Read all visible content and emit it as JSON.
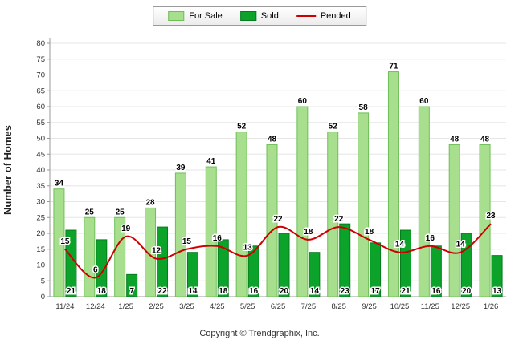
{
  "legend": {
    "for_sale_label": "For Sale",
    "sold_label": "Sold",
    "pended_label": "Pended"
  },
  "footer": "Copyright © Trendgraphix, Inc.",
  "colors": {
    "for_sale": "#A8DF8E",
    "for_sale_border": "#6FBF58",
    "sold": "#0CA32B",
    "sold_border": "#077A1F",
    "pended": "#CC0000",
    "grid": "#e6e6e6",
    "axis": "#999999",
    "tick_text": "#333333",
    "label_text": "#000000"
  },
  "chart_data": {
    "type": "bar",
    "subtype": "grouped-bars-with-line-overlay",
    "categories": [
      "11/24",
      "12/24",
      "1/25",
      "2/25",
      "3/25",
      "4/25",
      "5/25",
      "6/25",
      "7/25",
      "8/25",
      "9/25",
      "10/25",
      "11/25",
      "12/25",
      "1/26"
    ],
    "series": [
      {
        "name": "For Sale",
        "type": "bar",
        "values": [
          34,
          25,
          25,
          28,
          39,
          41,
          52,
          48,
          60,
          52,
          58,
          71,
          60,
          48,
          48
        ]
      },
      {
        "name": "Sold",
        "type": "bar",
        "values": [
          21,
          18,
          7,
          22,
          14,
          18,
          16,
          20,
          14,
          23,
          17,
          21,
          16,
          20,
          13
        ]
      },
      {
        "name": "Pended",
        "type": "line",
        "values": [
          15,
          6,
          19,
          12,
          15,
          16,
          13,
          22,
          18,
          22,
          18,
          14,
          16,
          14,
          23
        ]
      }
    ],
    "title": "",
    "xlabel": "",
    "ylabel": "Number of Homes",
    "ylim": [
      0,
      80
    ],
    "ytick_step": 5,
    "grid": true,
    "legend_position": "top"
  }
}
